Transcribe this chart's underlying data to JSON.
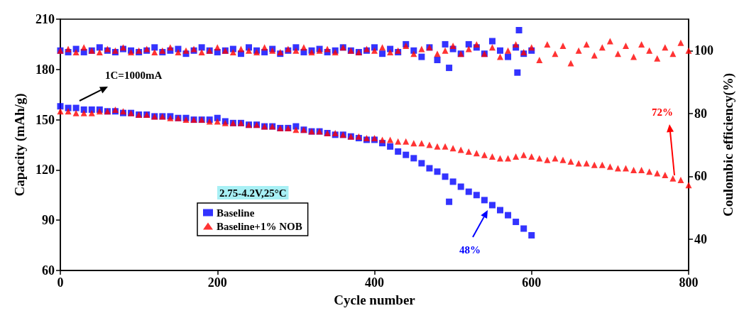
{
  "chart_data": {
    "type": "scatter",
    "xlabel": "Cycle number",
    "ylabel": "Capacity (mAh/g)",
    "y2label": "Coulombic efficiency(%)",
    "xlim": [
      0,
      800
    ],
    "xticks": [
      0,
      200,
      400,
      600,
      800
    ],
    "ylim": [
      60,
      210
    ],
    "yticks": [
      60,
      90,
      120,
      150,
      180,
      210
    ],
    "y2lim": [
      30,
      110
    ],
    "y2ticks": [
      40,
      60,
      80,
      100
    ],
    "grid": false,
    "legend": "bottom left",
    "annotations": [
      "1C=1000mA",
      "2.75-4.2V,25°C",
      "48%",
      "72%"
    ],
    "series": [
      {
        "name": "Baseline",
        "color": "#0000ff",
        "marker": "square",
        "x": [
          0,
          10,
          20,
          30,
          40,
          50,
          60,
          70,
          80,
          90,
          100,
          110,
          120,
          130,
          140,
          150,
          160,
          170,
          180,
          190,
          200,
          210,
          220,
          230,
          240,
          250,
          260,
          270,
          280,
          290,
          300,
          310,
          320,
          330,
          340,
          350,
          360,
          370,
          380,
          390,
          400,
          410,
          420,
          430,
          440,
          450,
          460,
          470,
          480,
          490,
          495,
          500,
          510,
          520,
          530,
          540,
          550,
          560,
          570,
          580,
          590,
          600
        ],
        "values": [
          158,
          157,
          157,
          156,
          156,
          156,
          155,
          155,
          154,
          154,
          153,
          153,
          152,
          152,
          152,
          151,
          151,
          150,
          150,
          150,
          151,
          149,
          148,
          148,
          147,
          147,
          146,
          146,
          145,
          145,
          146,
          144,
          143,
          143,
          142,
          141,
          141,
          140,
          139,
          138,
          138,
          136,
          134,
          131,
          129,
          127,
          124,
          121,
          119,
          116,
          101,
          113,
          110,
          107,
          105,
          102,
          99,
          96,
          93,
          89,
          85,
          81
        ]
      },
      {
        "name": "Baseline+1% NOB",
        "color": "#ff0000",
        "marker": "triangle",
        "x": [
          0,
          10,
          20,
          30,
          40,
          50,
          60,
          70,
          80,
          90,
          100,
          110,
          120,
          130,
          140,
          150,
          160,
          170,
          180,
          190,
          200,
          210,
          220,
          230,
          240,
          250,
          260,
          270,
          280,
          290,
          300,
          310,
          320,
          330,
          340,
          350,
          360,
          370,
          380,
          390,
          400,
          410,
          420,
          430,
          440,
          450,
          460,
          470,
          480,
          490,
          500,
          510,
          520,
          530,
          540,
          550,
          560,
          570,
          580,
          590,
          600,
          610,
          620,
          630,
          640,
          650,
          660,
          670,
          680,
          690,
          700,
          710,
          720,
          730,
          740,
          750,
          760,
          770,
          780,
          790,
          800
        ],
        "values": [
          155,
          155,
          154,
          154,
          154,
          155,
          155,
          156,
          155,
          154,
          153,
          153,
          152,
          152,
          151,
          151,
          150,
          150,
          150,
          149,
          149,
          148,
          148,
          148,
          147,
          147,
          146,
          146,
          145,
          145,
          144,
          144,
          143,
          143,
          142,
          142,
          141,
          140,
          140,
          139,
          139,
          138,
          138,
          137,
          137,
          136,
          136,
          135,
          134,
          134,
          133,
          132,
          131,
          130,
          129,
          128,
          127,
          127,
          128,
          129,
          128,
          127,
          126,
          127,
          126,
          125,
          124,
          124,
          123,
          123,
          122,
          121,
          121,
          120,
          120,
          119,
          118,
          117,
          115,
          114,
          111
        ]
      },
      {
        "color": "#0000ff",
        "marker": "square",
        "axis": "y2",
        "x": [
          0,
          10,
          20,
          30,
          40,
          50,
          60,
          70,
          80,
          90,
          100,
          110,
          120,
          130,
          140,
          150,
          160,
          170,
          180,
          190,
          200,
          210,
          220,
          230,
          240,
          250,
          260,
          270,
          280,
          290,
          300,
          310,
          320,
          330,
          340,
          350,
          360,
          370,
          380,
          390,
          400,
          410,
          420,
          430,
          440,
          450,
          460,
          470,
          480,
          490,
          495,
          500,
          510,
          520,
          530,
          540,
          550,
          560,
          570,
          580,
          582,
          584,
          590,
          600
        ],
        "values": [
          100,
          99.5,
          100.5,
          99.5,
          100,
          101,
          100,
          99.5,
          100.5,
          100,
          99.5,
          100,
          101,
          99.5,
          100,
          100.5,
          99,
          100,
          101,
          100,
          99.5,
          100,
          100.5,
          99,
          101,
          100,
          99.5,
          100.5,
          99,
          100,
          101,
          99.5,
          100,
          100.5,
          99.5,
          100,
          101,
          100,
          99.5,
          100,
          101,
          99,
          100.5,
          99.5,
          102,
          100,
          98,
          101,
          97,
          102,
          94.5,
          100.5,
          99,
          102,
          101,
          99,
          103,
          100,
          98,
          101,
          93,
          106.5,
          99,
          100
        ]
      },
      {
        "color": "#ff0000",
        "marker": "triangle",
        "axis": "y2",
        "x": [
          0,
          10,
          20,
          30,
          40,
          50,
          60,
          70,
          80,
          90,
          100,
          110,
          120,
          130,
          140,
          150,
          160,
          170,
          180,
          190,
          200,
          210,
          220,
          230,
          240,
          250,
          260,
          270,
          280,
          290,
          300,
          310,
          320,
          330,
          340,
          350,
          360,
          370,
          380,
          390,
          400,
          410,
          420,
          430,
          440,
          450,
          460,
          470,
          480,
          490,
          500,
          510,
          520,
          530,
          540,
          550,
          560,
          570,
          580,
          590,
          600,
          610,
          620,
          630,
          640,
          650,
          660,
          670,
          680,
          690,
          700,
          710,
          720,
          730,
          740,
          750,
          760,
          770,
          780,
          790,
          800
        ],
        "values": [
          100,
          100.5,
          99.5,
          101,
          100,
          99.5,
          100.5,
          100,
          101,
          99.5,
          100,
          100.5,
          99.5,
          100,
          101,
          99.5,
          100,
          100.5,
          99.5,
          100,
          101,
          100,
          99.5,
          100.5,
          100,
          99.5,
          101,
          100,
          99.5,
          100.5,
          100,
          101,
          99.5,
          100,
          100.5,
          99.5,
          101,
          100,
          99.5,
          100.5,
          100,
          101,
          99.5,
          100,
          101.5,
          99,
          100.5,
          101,
          99,
          100,
          101.5,
          99,
          100.5,
          102,
          99,
          101,
          98,
          100,
          102,
          99.5,
          101,
          97,
          102,
          99,
          101.5,
          96,
          100,
          102,
          98.5,
          101,
          103,
          99,
          101.5,
          98,
          102,
          100,
          97.5,
          101,
          99,
          102.5,
          100
        ]
      }
    ]
  }
}
